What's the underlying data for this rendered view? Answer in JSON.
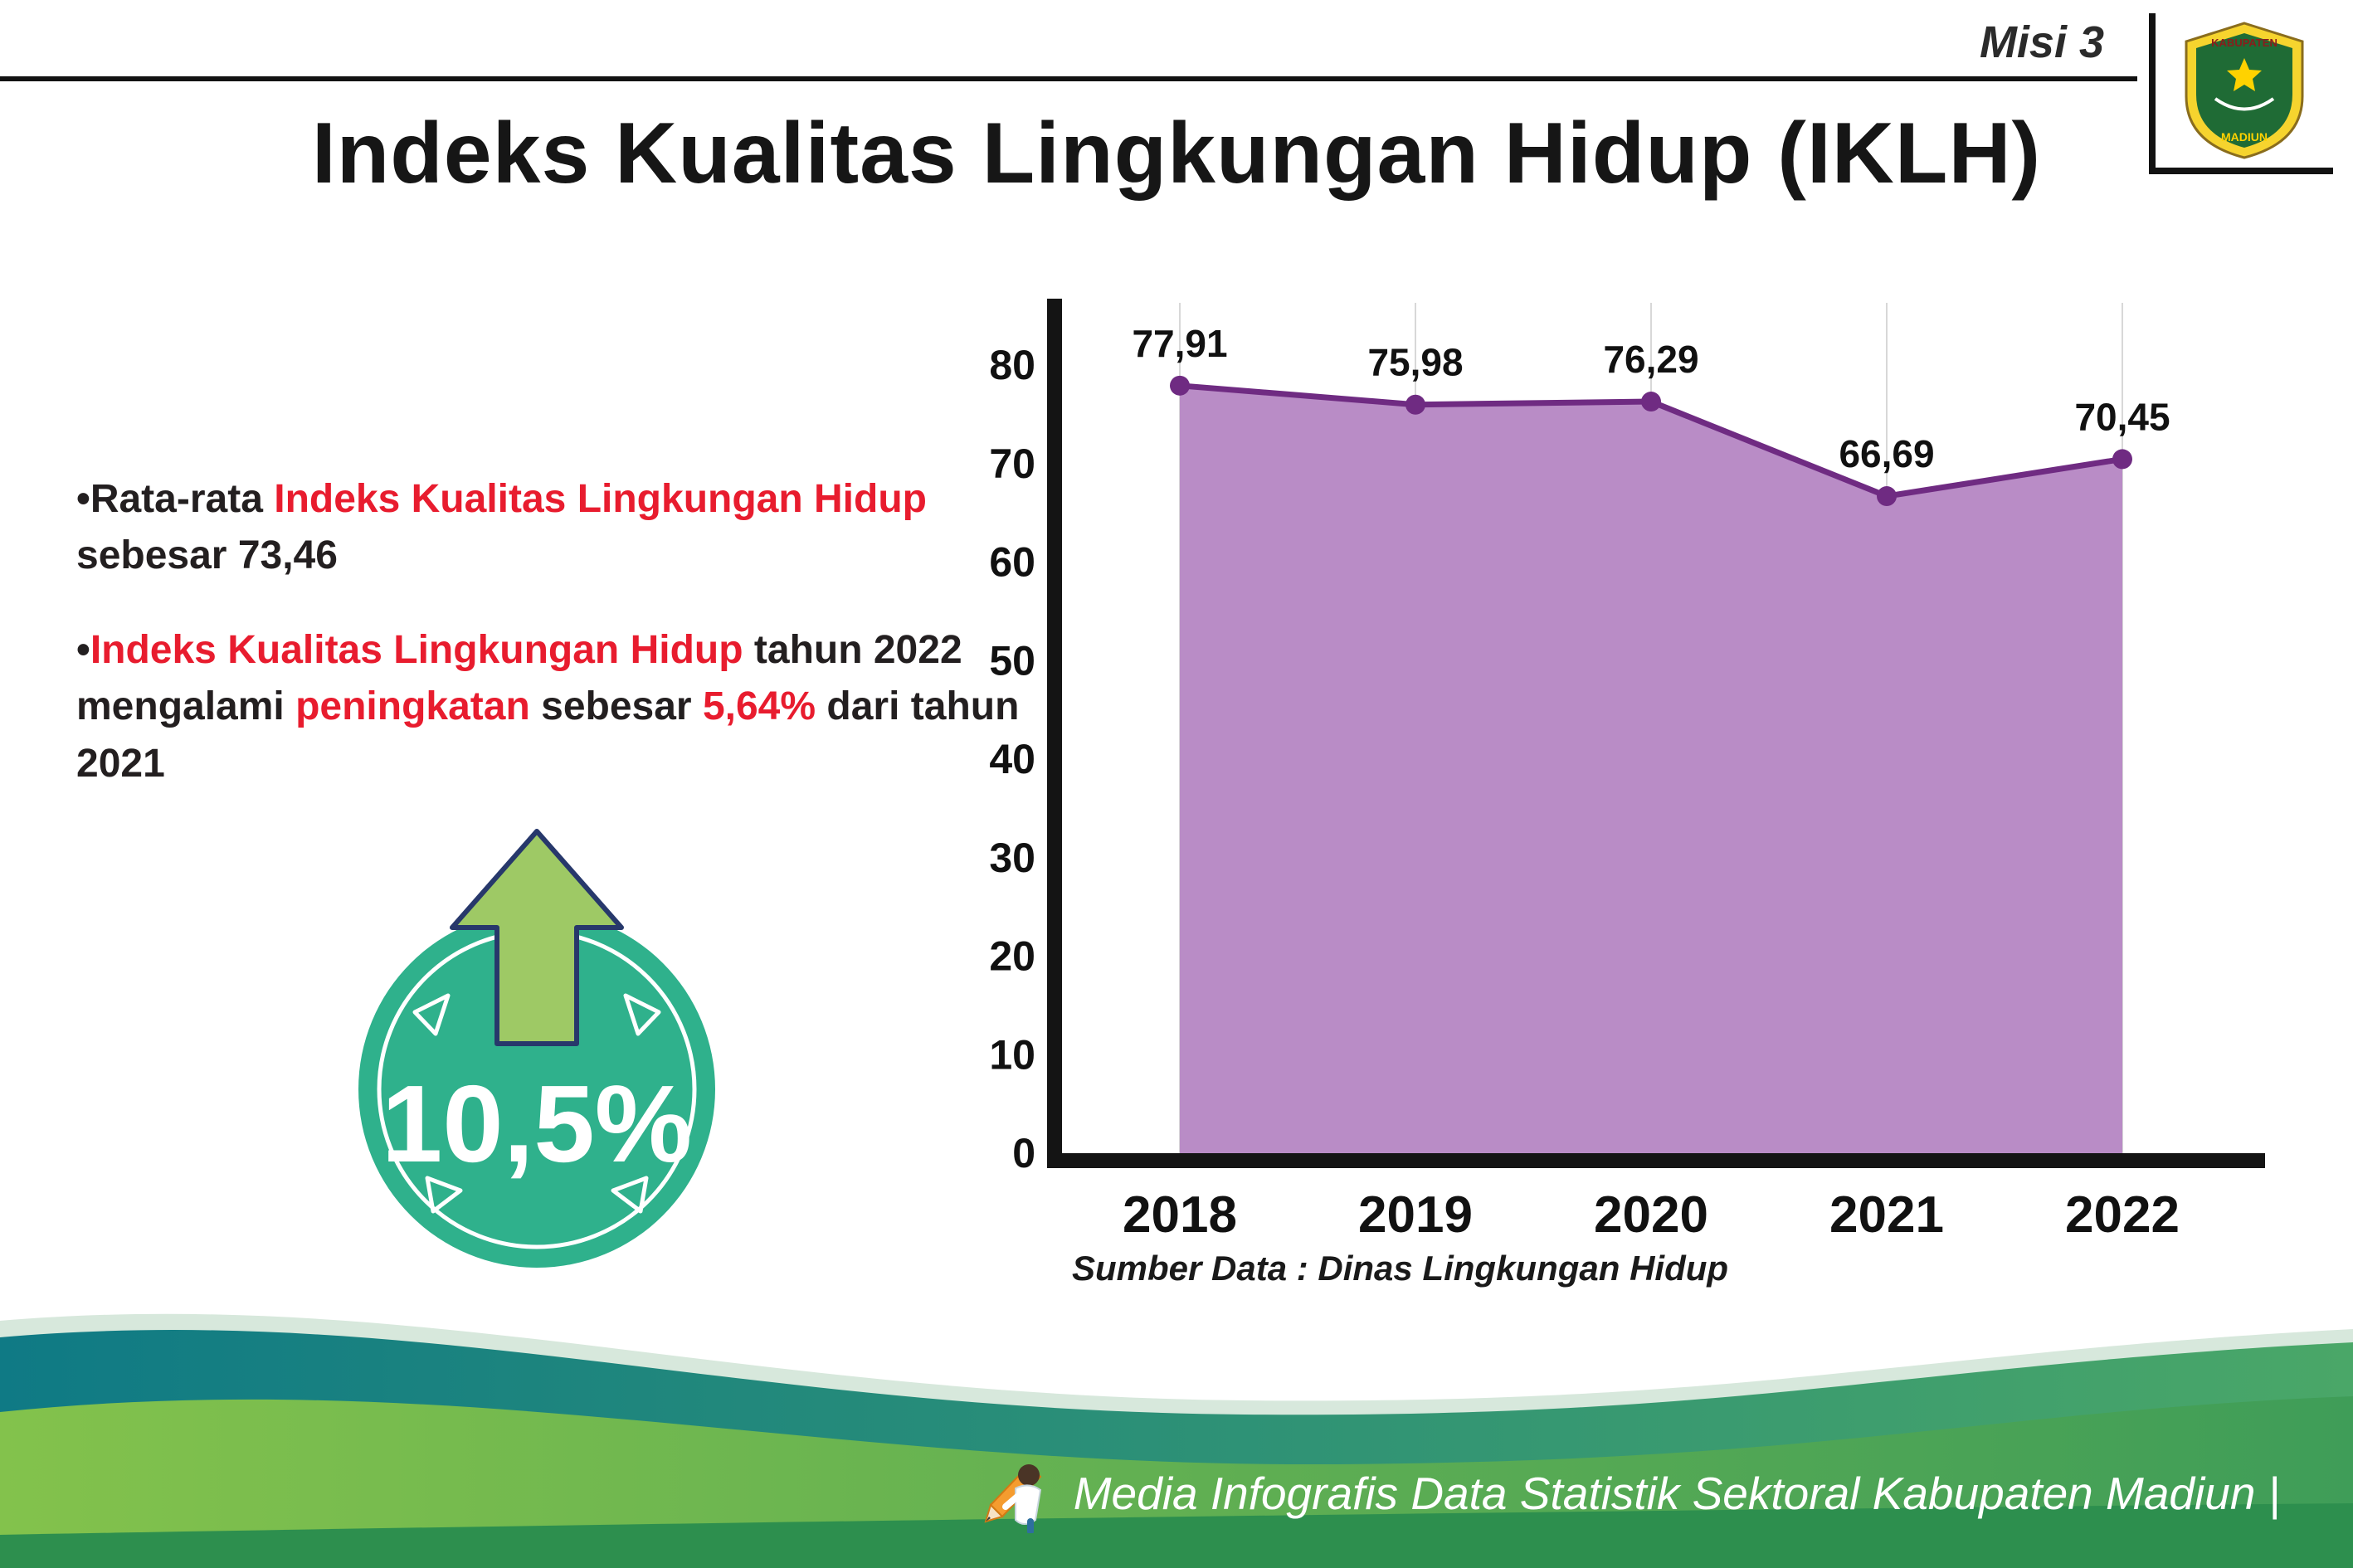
{
  "header": {
    "misi_label": "Misi 3",
    "title": "Indeks Kualitas Lingkungan Hidup (IKLH)",
    "logo": {
      "top_text": "KABUPATEN",
      "bottom_text": "MADIUN"
    }
  },
  "bullets": {
    "marker": "•",
    "b1": {
      "p1": "Rata-rata ",
      "p2": "Indeks Kualitas Lingkungan Hidup",
      "p3": " sebesar 73,46"
    },
    "b2": {
      "p1": "Indeks Kualitas Lingkungan Hidup",
      "p2": " tahun 2022 mengalami ",
      "p3": "peningkatan",
      "p4": " sebesar ",
      "p5": "5,64%",
      "p6": " dari tahun 2021"
    }
  },
  "badge": {
    "value": "10,5%"
  },
  "chart_data": {
    "type": "area",
    "title": "Indeks Kualitas Lingkungan Hidup (IKLH)",
    "categories": [
      "2018",
      "2019",
      "2020",
      "2021",
      "2022"
    ],
    "values": [
      77.91,
      75.98,
      76.29,
      66.69,
      70.45
    ],
    "point_labels": [
      "77,91",
      "75,98",
      "76,29",
      "66,69",
      "70,45"
    ],
    "ylim": [
      0,
      80
    ],
    "yticks": [
      0,
      10,
      20,
      30,
      40,
      50,
      60,
      70,
      80
    ],
    "grid": "vertical-light",
    "legend": "none",
    "line_color": "#6f2b82",
    "fill_color": "#b98cc6",
    "axis_color": "#141414",
    "grid_color": "#d8d8d8",
    "source": "Sumber Data : Dinas Lingkungan Hidup"
  },
  "footer": {
    "credit": "Media Infografis Data Statistik Sektoral Kabupaten Madiun |"
  },
  "colors": {
    "red_accent": "#e81c2e",
    "badge_green": "#2fb18c",
    "arrow_green": "#9ec965",
    "arrow_outline": "#27386b",
    "wave_teal_left": "#0f7a85",
    "wave_teal_right": "#4aa768",
    "wave_green_left": "#83c24c",
    "wave_green_right": "#3f9d58",
    "wave_bottom": "#2d8f4e"
  }
}
